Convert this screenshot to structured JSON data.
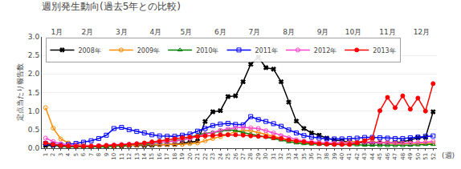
{
  "chart_data": {
    "type": "line",
    "title": "週別発生動向(過去5年との比較)",
    "ylabel": "定点当たり報告数",
    "xlabel": "(週)",
    "x": [
      1,
      2,
      3,
      4,
      5,
      6,
      7,
      8,
      9,
      10,
      11,
      12,
      13,
      14,
      15,
      16,
      17,
      18,
      19,
      20,
      21,
      22,
      23,
      24,
      25,
      26,
      27,
      28,
      29,
      30,
      31,
      32,
      33,
      34,
      35,
      36,
      37,
      38,
      39,
      40,
      41,
      42,
      43,
      44,
      45,
      46,
      47,
      48,
      49,
      50,
      51,
      52
    ],
    "xlim": [
      0.5,
      52.5
    ],
    "xticks": [
      1,
      2,
      3,
      4,
      5,
      6,
      7,
      8,
      9,
      10,
      11,
      12,
      13,
      14,
      15,
      16,
      17,
      18,
      19,
      20,
      21,
      22,
      23,
      24,
      25,
      26,
      27,
      28,
      29,
      30,
      31,
      32,
      33,
      34,
      35,
      36,
      37,
      38,
      39,
      40,
      41,
      42,
      43,
      44,
      45,
      46,
      47,
      48,
      49,
      50,
      51,
      52
    ],
    "x2ticks": [
      {
        "value": 2.5,
        "label": "1月"
      },
      {
        "value": 6.5,
        "label": "2月"
      },
      {
        "value": 11,
        "label": "3月"
      },
      {
        "value": 15.5,
        "label": "4月"
      },
      {
        "value": 19.5,
        "label": "5月"
      },
      {
        "value": 24,
        "label": "6月"
      },
      {
        "value": 28.5,
        "label": "7月"
      },
      {
        "value": 33,
        "label": "8月"
      },
      {
        "value": 37.5,
        "label": "9月"
      },
      {
        "value": 41.5,
        "label": "10月"
      },
      {
        "value": 46,
        "label": "11月"
      },
      {
        "value": 50.5,
        "label": "12月"
      }
    ],
    "ylim": [
      0,
      3.0
    ],
    "yticks": [
      {
        "value": 0,
        "label": "0.0"
      },
      0.5,
      {
        "value": 1.0,
        "label": "1.0"
      },
      1.5,
      {
        "value": 2.0,
        "label": "2.0"
      },
      2.5,
      {
        "value": 3.0,
        "label": "3.0"
      }
    ],
    "grid": true,
    "legend": "upper left",
    "series": [
      {
        "name": "2008年",
        "color": "#000000",
        "marker": "x",
        "values": [
          0.07,
          0.07,
          0.07,
          0.07,
          0.07,
          0.05,
          0.05,
          0.05,
          0.05,
          0.05,
          0.06,
          0.07,
          0.08,
          0.07,
          0.08,
          0.1,
          0.1,
          0.1,
          0.14,
          0.16,
          0.19,
          0.72,
          0.98,
          1.01,
          1.39,
          1.41,
          1.79,
          2.26,
          2.45,
          2.17,
          2.13,
          1.79,
          1.24,
          0.73,
          0.53,
          0.41,
          0.35,
          0.27,
          0.22,
          0.19,
          0.17,
          0.15,
          0.14,
          0.15,
          0.14,
          0.14,
          0.15,
          0.17,
          0.22,
          0.28,
          0.29,
          0.98
        ]
      },
      {
        "name": "2009年",
        "color": "#ff8c00",
        "marker": "circle-open",
        "values": [
          1.09,
          0.54,
          0.25,
          0.14,
          0.1,
          0.08,
          0.06,
          0.05,
          0.07,
          0.06,
          0.07,
          0.08,
          0.08,
          0.09,
          0.1,
          0.09,
          0.1,
          0.1,
          0.1,
          0.12,
          0.14,
          0.2,
          0.26,
          0.31,
          0.37,
          0.45,
          0.47,
          0.47,
          0.42,
          0.37,
          0.32,
          0.26,
          0.22,
          0.18,
          0.16,
          0.14,
          0.14,
          0.12,
          0.13,
          0.15,
          0.17,
          0.17,
          0.16,
          0.17,
          0.16,
          0.14,
          0.12,
          0.13,
          0.13,
          0.13,
          0.13,
          0.13
        ]
      },
      {
        "name": "2010年",
        "color": "#008000",
        "marker": "triangle-up-open",
        "values": [
          0.12,
          0.08,
          0.05,
          0.04,
          0.04,
          0.03,
          0.03,
          0.04,
          0.04,
          0.06,
          0.07,
          0.1,
          0.12,
          0.11,
          0.13,
          0.15,
          0.17,
          0.2,
          0.23,
          0.28,
          0.36,
          0.4,
          0.42,
          0.46,
          0.49,
          0.48,
          0.42,
          0.38,
          0.34,
          0.3,
          0.26,
          0.22,
          0.17,
          0.14,
          0.12,
          0.11,
          0.1,
          0.1,
          0.1,
          0.1,
          0.1,
          0.09,
          0.08,
          0.08,
          0.07,
          0.07,
          0.07,
          0.07,
          0.08,
          0.09,
          0.1,
          0.1
        ]
      },
      {
        "name": "2011年",
        "color": "#0000ff",
        "marker": "square-open",
        "values": [
          0.13,
          0.1,
          0.09,
          0.1,
          0.13,
          0.16,
          0.2,
          0.26,
          0.35,
          0.53,
          0.56,
          0.5,
          0.45,
          0.41,
          0.36,
          0.33,
          0.32,
          0.32,
          0.35,
          0.38,
          0.46,
          0.53,
          0.61,
          0.65,
          0.67,
          0.64,
          0.63,
          0.85,
          0.77,
          0.72,
          0.66,
          0.59,
          0.49,
          0.41,
          0.34,
          0.3,
          0.27,
          0.25,
          0.25,
          0.25,
          0.26,
          0.27,
          0.29,
          0.29,
          0.28,
          0.27,
          0.26,
          0.26,
          0.28,
          0.3,
          0.32,
          0.33
        ]
      },
      {
        "name": "2012年",
        "color": "#ff44cc",
        "marker": "circle-open",
        "values": [
          0.27,
          0.18,
          0.12,
          0.08,
          0.07,
          0.06,
          0.06,
          0.07,
          0.08,
          0.09,
          0.1,
          0.11,
          0.12,
          0.13,
          0.14,
          0.15,
          0.17,
          0.19,
          0.22,
          0.26,
          0.32,
          0.38,
          0.42,
          0.48,
          0.52,
          0.55,
          0.56,
          0.55,
          0.53,
          0.47,
          0.41,
          0.34,
          0.28,
          0.23,
          0.19,
          0.17,
          0.15,
          0.14,
          0.14,
          0.14,
          0.15,
          0.15,
          0.16,
          0.16,
          0.16,
          0.15,
          0.14,
          0.14,
          0.14,
          0.15,
          0.16,
          0.18
        ]
      },
      {
        "name": "2013年",
        "color": "#ff0000",
        "marker": "circle",
        "values": [
          0.14,
          0.1,
          0.07,
          0.06,
          0.05,
          0.05,
          0.05,
          0.06,
          0.07,
          0.08,
          0.09,
          0.1,
          0.12,
          0.14,
          0.17,
          0.19,
          0.22,
          0.25,
          0.28,
          0.3,
          0.31,
          0.33,
          0.34,
          0.36,
          0.36,
          0.36,
          0.35,
          0.33,
          0.32,
          0.31,
          0.28,
          0.26,
          0.22,
          0.19,
          0.17,
          0.14,
          0.12,
          0.11,
          0.1,
          0.1,
          0.1,
          0.14,
          0.2,
          0.27,
          1.01,
          1.37,
          1.09,
          1.41,
          1.05,
          1.35,
          1.0,
          1.74
        ]
      }
    ]
  }
}
